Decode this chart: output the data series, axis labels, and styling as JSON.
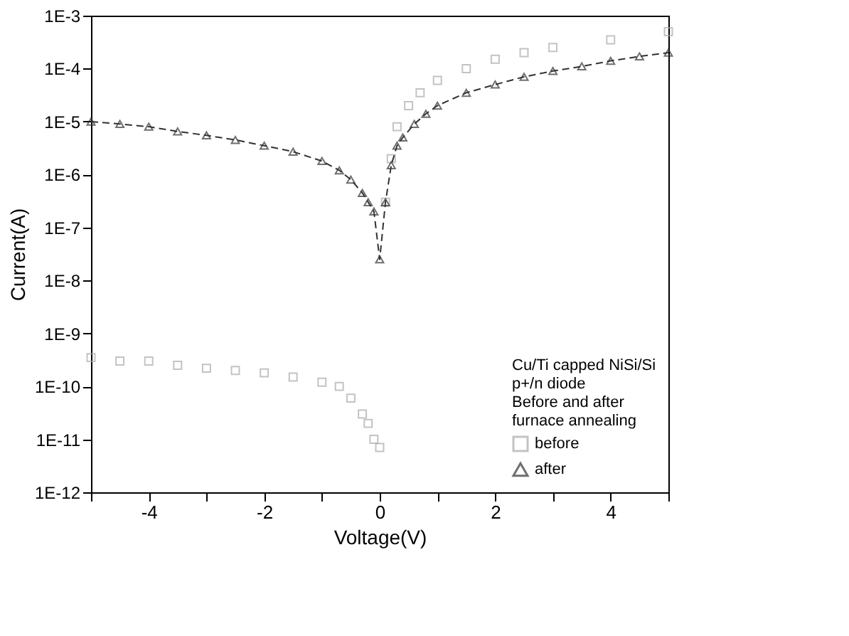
{
  "chart_data": {
    "type": "scatter",
    "xlabel": "Voltage(V)",
    "ylabel": "Current(A)",
    "legend_title": "Cu/Ti capped NiSi/Si\np+/n diode\nBefore and after\nfurnace annealing",
    "log": "y",
    "legend": "bottom right",
    "grid": false,
    "xlim": [
      -5,
      5
    ],
    "xticks": [
      {
        "value": -5,
        "label": null
      },
      -4,
      {
        "value": -3,
        "label": null
      },
      -2,
      {
        "value": -1,
        "label": null
      },
      0,
      {
        "value": 1,
        "label": null
      },
      2,
      {
        "value": 3,
        "label": null
      },
      4,
      {
        "value": 5,
        "label": null
      }
    ],
    "ylim": [
      1e-12,
      0.001
    ],
    "yticks": [
      {
        "value": 1e-12,
        "label": "1E-12"
      },
      {
        "value": 1e-11,
        "label": "1E-11"
      },
      {
        "value": 1e-10,
        "label": "1E-10"
      },
      {
        "value": 1e-09,
        "label": "1E-9"
      },
      {
        "value": 1e-08,
        "label": "1E-8"
      },
      {
        "value": 1e-07,
        "label": "1E-7"
      },
      {
        "value": 1e-06,
        "label": "1E-6"
      },
      {
        "value": 1e-05,
        "label": "1E-5"
      },
      {
        "value": 0.0001,
        "label": "1E-4"
      },
      {
        "value": 0.001,
        "label": "1E-3"
      }
    ],
    "series": [
      {
        "name": "before",
        "marker": "square",
        "color": "#aaaaaa",
        "x": [
          -5,
          -4.5,
          -4,
          -3.5,
          -3,
          -2.5,
          -2,
          -1.5,
          -1,
          -0.7,
          -0.5,
          -0.3,
          -0.2,
          -0.1,
          0,
          0.1,
          0.2,
          0.3,
          0.5,
          0.7,
          1,
          1.5,
          2,
          2.5,
          3,
          4,
          5
        ],
        "values": [
          3.5e-10,
          3e-10,
          3e-10,
          2.5e-10,
          2.2e-10,
          2e-10,
          1.8e-10,
          1.5e-10,
          1.2e-10,
          1e-10,
          6e-11,
          3e-11,
          2e-11,
          1e-11,
          7e-12,
          3e-07,
          2e-06,
          8e-06,
          2e-05,
          3.5e-05,
          6e-05,
          0.0001,
          0.00015,
          0.0002,
          0.00025,
          0.00035,
          0.0005
        ]
      },
      {
        "name": "after",
        "type": "line",
        "line_style": "dashed",
        "marker": "triangle",
        "color": "#333333",
        "x": [
          -5,
          -4.5,
          -4,
          -3.5,
          -3,
          -2.5,
          -2,
          -1.5,
          -1,
          -0.7,
          -0.5,
          -0.3,
          -0.2,
          -0.1,
          0,
          0.1,
          0.2,
          0.3,
          0.4,
          0.6,
          0.8,
          1,
          1.5,
          2,
          2.5,
          3,
          3.5,
          4,
          4.5,
          5
        ],
        "values": [
          1e-05,
          9e-06,
          8e-06,
          6.5e-06,
          5.5e-06,
          4.5e-06,
          3.5e-06,
          2.7e-06,
          1.8e-06,
          1.2e-06,
          8e-07,
          4.5e-07,
          3e-07,
          2e-07,
          2.5e-08,
          3e-07,
          1.5e-06,
          3.5e-06,
          5e-06,
          9e-06,
          1.4e-05,
          2e-05,
          3.5e-05,
          5e-05,
          7e-05,
          9e-05,
          0.00011,
          0.00014,
          0.00017,
          0.0002
        ]
      }
    ]
  }
}
